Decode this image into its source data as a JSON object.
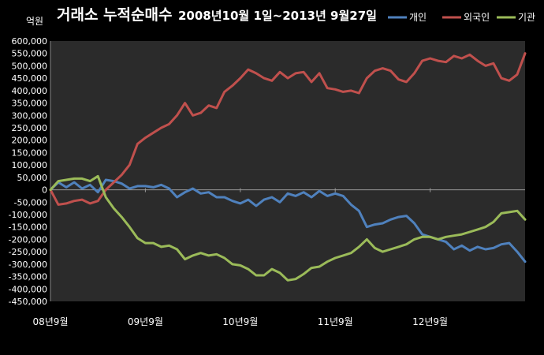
{
  "chart_data": {
    "type": "line",
    "title_main": "거래소 누적순매수",
    "title_sub": "2008년10월 1일~2013년 9월27일",
    "unit_label": "억원",
    "ylim": [
      -450000,
      600000
    ],
    "y_ticks": [
      600000,
      550000,
      500000,
      450000,
      400000,
      350000,
      300000,
      250000,
      200000,
      150000,
      100000,
      50000,
      0,
      -50000,
      -100000,
      -150000,
      -200000,
      -250000,
      -300000,
      -350000,
      -400000,
      -450000
    ],
    "y_tick_labels": [
      "600,000",
      "550,000",
      "500,000",
      "450,000",
      "400,000",
      "350,000",
      "300,000",
      "250,000",
      "200,000",
      "150,000",
      "100,000",
      "50,000",
      "0",
      "-50,000",
      "-100,000",
      "-150,000",
      "-200,000",
      "-250,000",
      "-300,000",
      "-350,000",
      "-400,000",
      "-450,000"
    ],
    "x_tick_labels": [
      "08년9월",
      "09년9월",
      "10년9월",
      "11년9월",
      "12년9월"
    ],
    "x_tick_positions": [
      0,
      12,
      24,
      36,
      48
    ],
    "x_range": [
      0,
      60
    ],
    "legend_position": "top-right",
    "grid": false,
    "series": [
      {
        "name": "개인",
        "color": "#4f81bd",
        "x": [
          0,
          1,
          2,
          3,
          4,
          5,
          6,
          7,
          8,
          9,
          10,
          11,
          12,
          13,
          14,
          15,
          16,
          17,
          18,
          19,
          20,
          21,
          22,
          23,
          24,
          25,
          26,
          27,
          28,
          29,
          30,
          31,
          32,
          33,
          34,
          35,
          36,
          37,
          38,
          39,
          40,
          41,
          42,
          43,
          44,
          45,
          46,
          47,
          48,
          49,
          50,
          51,
          52,
          53,
          54,
          55,
          56,
          57,
          58,
          59,
          60
        ],
        "values": [
          0,
          30000,
          10000,
          30000,
          5000,
          20000,
          -10000,
          40000,
          35000,
          25000,
          5000,
          15000,
          15000,
          10000,
          20000,
          5000,
          -30000,
          -10000,
          5000,
          -15000,
          -10000,
          -30000,
          -30000,
          -45000,
          -55000,
          -40000,
          -65000,
          -40000,
          -30000,
          -50000,
          -15000,
          -25000,
          -10000,
          -30000,
          -5000,
          -25000,
          -15000,
          -25000,
          -60000,
          -85000,
          -150000,
          -140000,
          -135000,
          -120000,
          -110000,
          -105000,
          -135000,
          -180000,
          -190000,
          -200000,
          -210000,
          -240000,
          -225000,
          -245000,
          -230000,
          -240000,
          -235000,
          -220000,
          -215000,
          -250000,
          -290000
        ]
      },
      {
        "name": "외국인",
        "color": "#c0504d",
        "x": [
          0,
          1,
          2,
          3,
          4,
          5,
          6,
          7,
          8,
          9,
          10,
          11,
          12,
          13,
          14,
          15,
          16,
          17,
          18,
          19,
          20,
          21,
          22,
          23,
          24,
          25,
          26,
          27,
          28,
          29,
          30,
          31,
          32,
          33,
          34,
          35,
          36,
          37,
          38,
          39,
          40,
          41,
          42,
          43,
          44,
          45,
          46,
          47,
          48,
          49,
          50,
          51,
          52,
          53,
          54,
          55,
          56,
          57,
          58,
          59,
          60
        ],
        "values": [
          0,
          -60000,
          -55000,
          -45000,
          -40000,
          -55000,
          -45000,
          0,
          30000,
          60000,
          100000,
          185000,
          210000,
          230000,
          250000,
          265000,
          300000,
          350000,
          300000,
          310000,
          340000,
          330000,
          395000,
          420000,
          450000,
          485000,
          470000,
          450000,
          440000,
          475000,
          450000,
          470000,
          475000,
          435000,
          470000,
          410000,
          405000,
          395000,
          400000,
          390000,
          450000,
          480000,
          490000,
          480000,
          445000,
          435000,
          470000,
          520000,
          530000,
          520000,
          515000,
          540000,
          530000,
          545000,
          520000,
          500000,
          510000,
          450000,
          440000,
          465000,
          550000
        ]
      },
      {
        "name": "기관",
        "color": "#9bbb59",
        "x": [
          0,
          1,
          2,
          3,
          4,
          5,
          6,
          7,
          8,
          9,
          10,
          11,
          12,
          13,
          14,
          15,
          16,
          17,
          18,
          19,
          20,
          21,
          22,
          23,
          24,
          25,
          26,
          27,
          28,
          29,
          30,
          31,
          32,
          33,
          34,
          35,
          36,
          37,
          38,
          39,
          40,
          41,
          42,
          43,
          44,
          45,
          46,
          47,
          48,
          49,
          50,
          51,
          52,
          53,
          54,
          55,
          56,
          57,
          58,
          59,
          60
        ],
        "values": [
          0,
          35000,
          40000,
          45000,
          45000,
          35000,
          55000,
          -30000,
          -75000,
          -110000,
          -150000,
          -195000,
          -215000,
          -215000,
          -230000,
          -225000,
          -240000,
          -280000,
          -265000,
          -255000,
          -265000,
          -260000,
          -275000,
          -300000,
          -305000,
          -320000,
          -345000,
          -345000,
          -320000,
          -335000,
          -365000,
          -360000,
          -340000,
          -315000,
          -310000,
          -290000,
          -275000,
          -265000,
          -255000,
          -230000,
          -200000,
          -235000,
          -250000,
          -240000,
          -230000,
          -220000,
          -200000,
          -190000,
          -190000,
          -200000,
          -190000,
          -185000,
          -180000,
          -170000,
          -160000,
          -150000,
          -130000,
          -95000,
          -90000,
          -85000,
          -120000
        ]
      }
    ]
  }
}
